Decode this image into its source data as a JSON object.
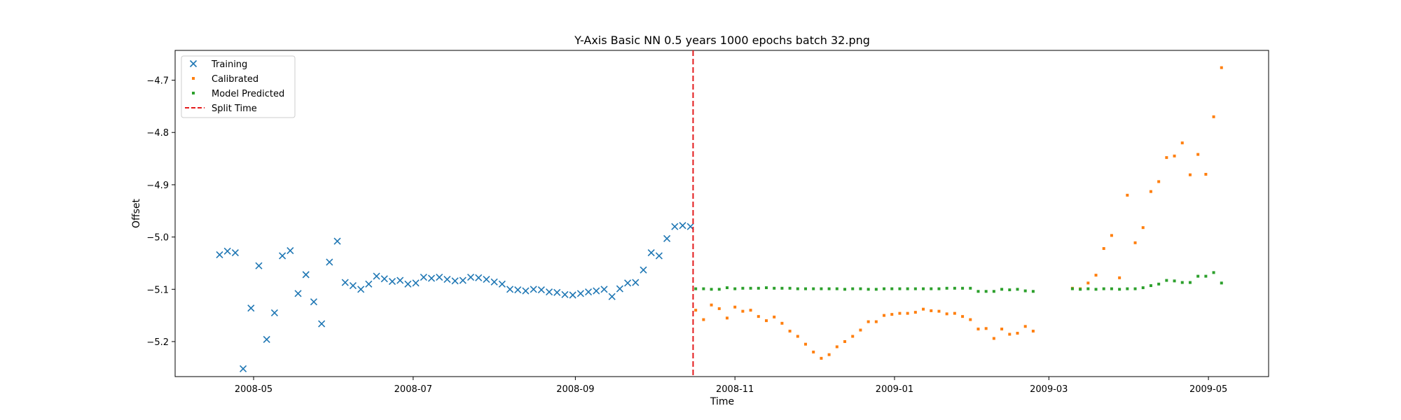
{
  "chart_data": {
    "type": "scatter",
    "title": "Y-Axis Basic NN 0.5 years 1000 epochs batch 32.png",
    "xlabel": "Time",
    "ylabel": "Offset",
    "xlim": [
      "2008-04-01",
      "2009-05-24"
    ],
    "ylim": [
      -5.267,
      -4.643
    ],
    "x_ticks": [
      "2008-05",
      "2008-07",
      "2008-09",
      "2008-11",
      "2009-01",
      "2009-03",
      "2009-05"
    ],
    "y_ticks": [
      -4.7,
      -4.8,
      -4.9,
      -5.0,
      -5.1,
      -5.2
    ],
    "y_tick_labels": [
      "−4.7",
      "−4.8",
      "−4.9",
      "−5.0",
      "−5.1",
      "−5.2"
    ],
    "grid": false,
    "legend_position": "top-left",
    "split_time": "2008-10-16",
    "series": [
      {
        "name": "Training",
        "marker": "x",
        "color": "#1f77b4",
        "x": [
          "2008-04-18",
          "2008-04-21",
          "2008-04-24",
          "2008-04-27",
          "2008-04-30",
          "2008-05-03",
          "2008-05-06",
          "2008-05-09",
          "2008-05-12",
          "2008-05-15",
          "2008-05-18",
          "2008-05-21",
          "2008-05-24",
          "2008-05-27",
          "2008-05-30",
          "2008-06-02",
          "2008-06-05",
          "2008-06-08",
          "2008-06-11",
          "2008-06-14",
          "2008-06-17",
          "2008-06-20",
          "2008-06-23",
          "2008-06-26",
          "2008-06-29",
          "2008-07-02",
          "2008-07-05",
          "2008-07-08",
          "2008-07-11",
          "2008-07-14",
          "2008-07-17",
          "2008-07-20",
          "2008-07-23",
          "2008-07-26",
          "2008-07-29",
          "2008-08-01",
          "2008-08-04",
          "2008-08-07",
          "2008-08-10",
          "2008-08-13",
          "2008-08-16",
          "2008-08-19",
          "2008-08-22",
          "2008-08-25",
          "2008-08-28",
          "2008-08-31",
          "2008-09-03",
          "2008-09-06",
          "2008-09-09",
          "2008-09-12",
          "2008-09-15",
          "2008-09-18",
          "2008-09-21",
          "2008-09-24",
          "2008-09-27",
          "2008-09-30",
          "2008-10-03",
          "2008-10-06",
          "2008-10-09",
          "2008-10-12",
          "2008-10-15"
        ],
        "y": [
          -5.034,
          -5.027,
          -5.03,
          -5.252,
          -5.136,
          -5.055,
          -5.196,
          -5.145,
          -5.036,
          -5.026,
          -5.108,
          -5.072,
          -5.124,
          -5.166,
          -5.048,
          -5.008,
          -5.087,
          -5.093,
          -5.1,
          -5.09,
          -5.075,
          -5.08,
          -5.085,
          -5.083,
          -5.09,
          -5.088,
          -5.077,
          -5.079,
          -5.077,
          -5.081,
          -5.084,
          -5.083,
          -5.077,
          -5.078,
          -5.081,
          -5.086,
          -5.09,
          -5.1,
          -5.101,
          -5.103,
          -5.1,
          -5.101,
          -5.105,
          -5.106,
          -5.11,
          -5.111,
          -5.108,
          -5.105,
          -5.103,
          -5.1,
          -5.114,
          -5.099,
          -5.088,
          -5.087,
          -5.063,
          -5.03,
          -5.036,
          -5.003,
          -4.98,
          -4.978,
          -4.98
        ]
      },
      {
        "name": "Calibrated",
        "marker": "square",
        "color": "#ff7f0e",
        "x": [
          "2008-10-17",
          "2008-10-20",
          "2008-10-23",
          "2008-10-26",
          "2008-10-29",
          "2008-11-01",
          "2008-11-04",
          "2008-11-07",
          "2008-11-10",
          "2008-11-13",
          "2008-11-16",
          "2008-11-19",
          "2008-11-22",
          "2008-11-25",
          "2008-11-28",
          "2008-12-01",
          "2008-12-04",
          "2008-12-07",
          "2008-12-10",
          "2008-12-13",
          "2008-12-16",
          "2008-12-19",
          "2008-12-22",
          "2008-12-25",
          "2008-12-28",
          "2008-12-31",
          "2009-01-03",
          "2009-01-06",
          "2009-01-09",
          "2009-01-12",
          "2009-01-15",
          "2009-01-18",
          "2009-01-21",
          "2009-01-24",
          "2009-01-27",
          "2009-01-30",
          "2009-02-02",
          "2009-02-05",
          "2009-02-08",
          "2009-02-11",
          "2009-02-14",
          "2009-02-17",
          "2009-02-20",
          "2009-02-23",
          "2009-03-10",
          "2009-03-13",
          "2009-03-16",
          "2009-03-19",
          "2009-03-22",
          "2009-03-25",
          "2009-03-28",
          "2009-03-31",
          "2009-04-03",
          "2009-04-06",
          "2009-04-09",
          "2009-04-12",
          "2009-04-15",
          "2009-04-18",
          "2009-04-21",
          "2009-04-24",
          "2009-04-27",
          "2009-04-30",
          "2009-05-03",
          "2009-05-06"
        ],
        "y": [
          -5.14,
          -5.158,
          -5.13,
          -5.137,
          -5.155,
          -5.134,
          -5.142,
          -5.14,
          -5.152,
          -5.16,
          -5.153,
          -5.165,
          -5.18,
          -5.19,
          -5.205,
          -5.22,
          -5.232,
          -5.225,
          -5.21,
          -5.2,
          -5.19,
          -5.178,
          -5.162,
          -5.162,
          -5.15,
          -5.148,
          -5.146,
          -5.146,
          -5.144,
          -5.138,
          -5.141,
          -5.142,
          -5.147,
          -5.146,
          -5.152,
          -5.158,
          -5.176,
          -5.175,
          -5.194,
          -5.176,
          -5.186,
          -5.184,
          -5.171,
          -5.18,
          -5.098,
          -5.099,
          -5.088,
          -5.073,
          -5.022,
          -4.997,
          -5.078,
          -4.92,
          -5.011,
          -4.982,
          -4.913,
          -4.894,
          -4.848,
          -4.845,
          -4.82,
          -4.881,
          -4.842,
          -4.88,
          -4.77,
          -4.676
        ]
      },
      {
        "name": "Model Predicted",
        "marker": "square",
        "color": "#2ca02c",
        "x": [
          "2008-10-17",
          "2008-10-20",
          "2008-10-23",
          "2008-10-26",
          "2008-10-29",
          "2008-11-01",
          "2008-11-04",
          "2008-11-07",
          "2008-11-10",
          "2008-11-13",
          "2008-11-16",
          "2008-11-19",
          "2008-11-22",
          "2008-11-25",
          "2008-11-28",
          "2008-12-01",
          "2008-12-04",
          "2008-12-07",
          "2008-12-10",
          "2008-12-13",
          "2008-12-16",
          "2008-12-19",
          "2008-12-22",
          "2008-12-25",
          "2008-12-28",
          "2008-12-31",
          "2009-01-03",
          "2009-01-06",
          "2009-01-09",
          "2009-01-12",
          "2009-01-15",
          "2009-01-18",
          "2009-01-21",
          "2009-01-24",
          "2009-01-27",
          "2009-01-30",
          "2009-02-02",
          "2009-02-05",
          "2009-02-08",
          "2009-02-11",
          "2009-02-14",
          "2009-02-17",
          "2009-02-20",
          "2009-02-23",
          "2009-03-10",
          "2009-03-13",
          "2009-03-16",
          "2009-03-19",
          "2009-03-22",
          "2009-03-25",
          "2009-03-28",
          "2009-03-31",
          "2009-04-03",
          "2009-04-06",
          "2009-04-09",
          "2009-04-12",
          "2009-04-15",
          "2009-04-18",
          "2009-04-21",
          "2009-04-24",
          "2009-04-27",
          "2009-04-30",
          "2009-05-03",
          "2009-05-06"
        ],
        "y": [
          -5.099,
          -5.099,
          -5.1,
          -5.1,
          -5.097,
          -5.099,
          -5.098,
          -5.098,
          -5.098,
          -5.097,
          -5.098,
          -5.098,
          -5.098,
          -5.099,
          -5.099,
          -5.099,
          -5.099,
          -5.099,
          -5.099,
          -5.1,
          -5.099,
          -5.099,
          -5.1,
          -5.1,
          -5.099,
          -5.099,
          -5.099,
          -5.099,
          -5.099,
          -5.099,
          -5.099,
          -5.099,
          -5.098,
          -5.098,
          -5.098,
          -5.098,
          -5.104,
          -5.104,
          -5.104,
          -5.1,
          -5.101,
          -5.1,
          -5.103,
          -5.104,
          -5.099,
          -5.1,
          -5.099,
          -5.1,
          -5.099,
          -5.099,
          -5.1,
          -5.099,
          -5.099,
          -5.097,
          -5.093,
          -5.09,
          -5.083,
          -5.084,
          -5.087,
          -5.087,
          -5.075,
          -5.075,
          -5.068,
          -5.088
        ]
      }
    ],
    "legend": [
      {
        "label": "Training",
        "marker": "x",
        "color": "#1f77b4"
      },
      {
        "label": "Calibrated",
        "marker": "square",
        "color": "#ff7f0e"
      },
      {
        "label": "Model Predicted",
        "marker": "square",
        "color": "#2ca02c"
      },
      {
        "label": "Split Time",
        "marker": "dashed-line",
        "color": "#d62728"
      }
    ]
  }
}
